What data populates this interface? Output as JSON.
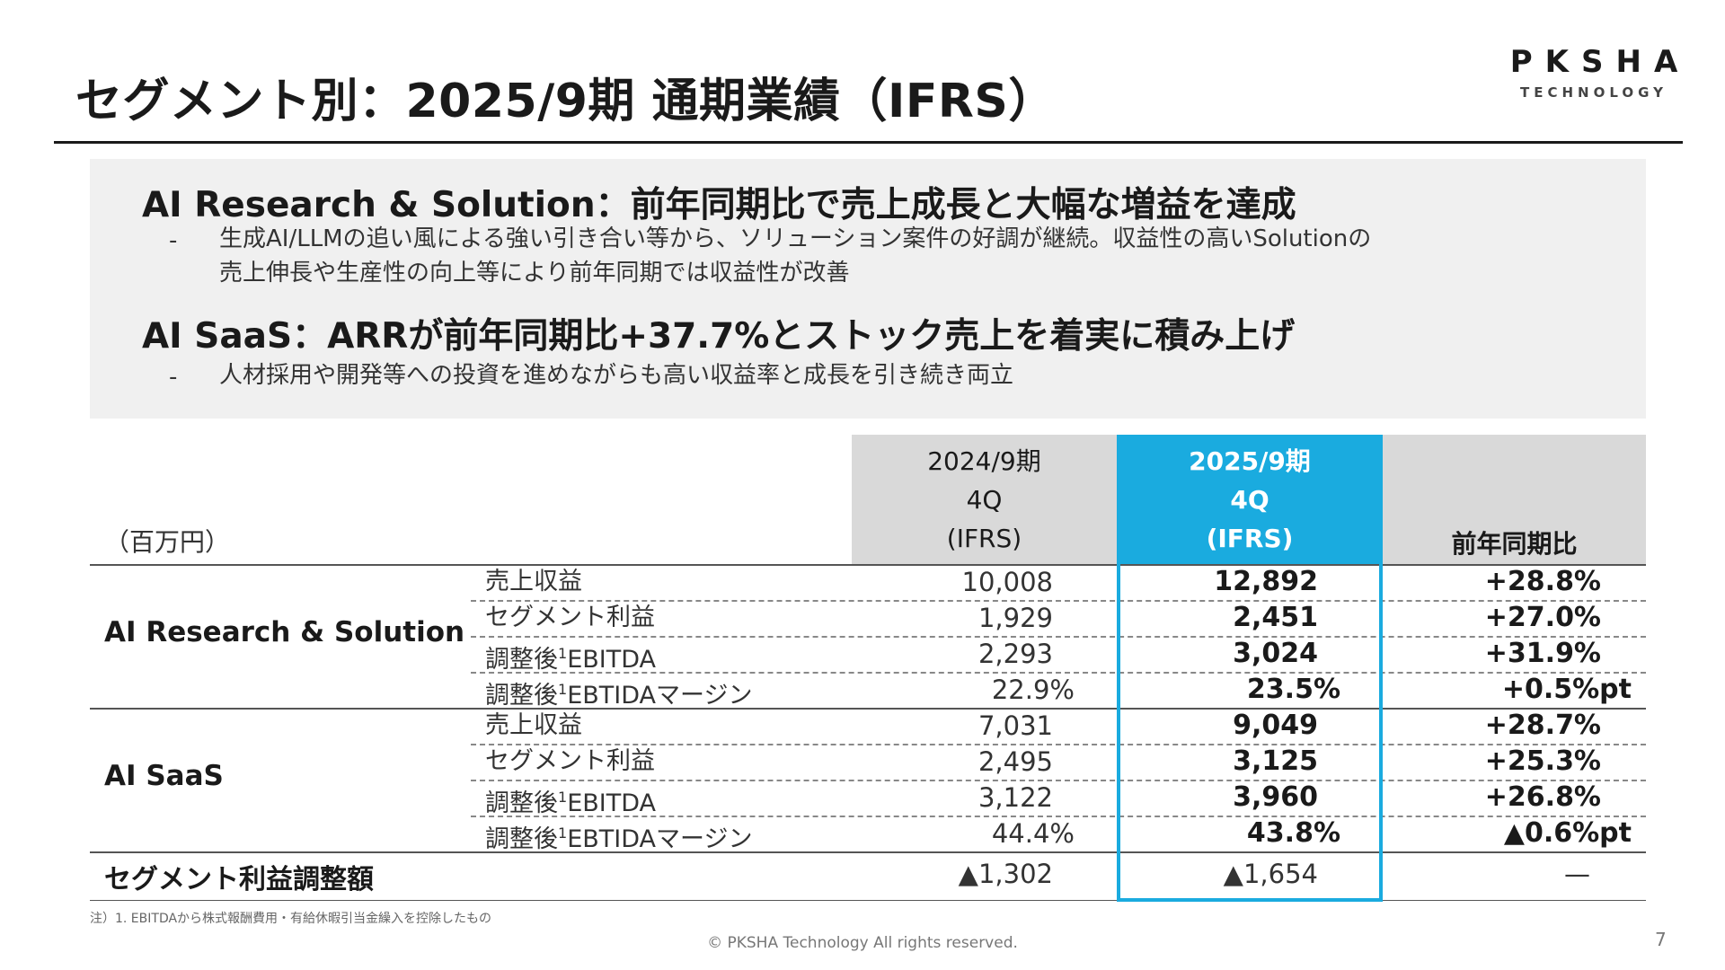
{
  "title": "セグメント別：2025/9期 通期業績（IFRS）",
  "logo": {
    "main": "PKSHA",
    "sub": "TECHNOLOGY"
  },
  "summary": [
    {
      "heading": "AI Research & Solution：前年同期比で売上成長と大幅な増益を達成",
      "bullet": "-",
      "lines": [
        "生成AI/LLMの追い風による強い引き合い等から、ソリューション案件の好調が継続。収益性の高いSolutionの",
        "売上伸長や生産性の向上等により前年同期では収益性が改善"
      ]
    },
    {
      "heading": "AI SaaS：ARRが前年同期比+37.7%とストック売上を着実に積み上げ",
      "bullet": "-",
      "lines": [
        "人材採用や開発等への投資を進めながらも高い収益率と成長を引き続き両立"
      ]
    }
  ],
  "table": {
    "unit": "（百万円）",
    "col_prev": [
      "2024/9期",
      "4Q",
      "(IFRS)"
    ],
    "col_cur": [
      "2025/9期",
      "4Q",
      "(IFRS)"
    ],
    "col_yoy": "前年同期比",
    "segments": [
      {
        "name": "AI Research & Solution",
        "rows": [
          {
            "label": "売上収益",
            "sup": "",
            "label_rest": "",
            "prev": "10,008",
            "cur": "12,892",
            "yoy": "+28.8%"
          },
          {
            "label": "セグメント利益",
            "sup": "",
            "label_rest": "",
            "prev": "1,929",
            "cur": "2,451",
            "yoy": "+27.0%"
          },
          {
            "label": "調整後",
            "sup": "1",
            "label_rest": "EBITDA",
            "prev": "2,293",
            "cur": "3,024",
            "yoy": "+31.9%"
          },
          {
            "label": "調整後",
            "sup": "1",
            "label_rest": "EBTIDAマージン",
            "prev": "22.9%",
            "cur": "23.5%",
            "yoy": "+0.5%pt"
          }
        ]
      },
      {
        "name": "AI SaaS",
        "rows": [
          {
            "label": "売上収益",
            "sup": "",
            "label_rest": "",
            "prev": "7,031",
            "cur": "9,049",
            "yoy": "+28.7%"
          },
          {
            "label": "セグメント利益",
            "sup": "",
            "label_rest": "",
            "prev": "2,495",
            "cur": "3,125",
            "yoy": "+25.3%"
          },
          {
            "label": "調整後",
            "sup": "1",
            "label_rest": "EBITDA",
            "prev": "3,122",
            "cur": "3,960",
            "yoy": "+26.8%"
          },
          {
            "label": "調整後",
            "sup": "1",
            "label_rest": "EBTIDAマージン",
            "prev": "44.4%",
            "cur": "43.8%",
            "yoy": "▲0.6%pt"
          }
        ]
      }
    ],
    "total": {
      "label": "セグメント利益調整額",
      "prev": "▲1,302",
      "cur": "▲1,654",
      "yoy": "—"
    }
  },
  "note": "注）1. EBITDAから株式報酬費用・有給休暇引当金繰入を控除したもの",
  "copyright": "© PKSHA Technology All rights reserved.",
  "page_number": "7",
  "colors": {
    "accent": "#1aabdf",
    "header_grey": "#d9d9d9",
    "summary_bg": "#f0f0f0"
  }
}
